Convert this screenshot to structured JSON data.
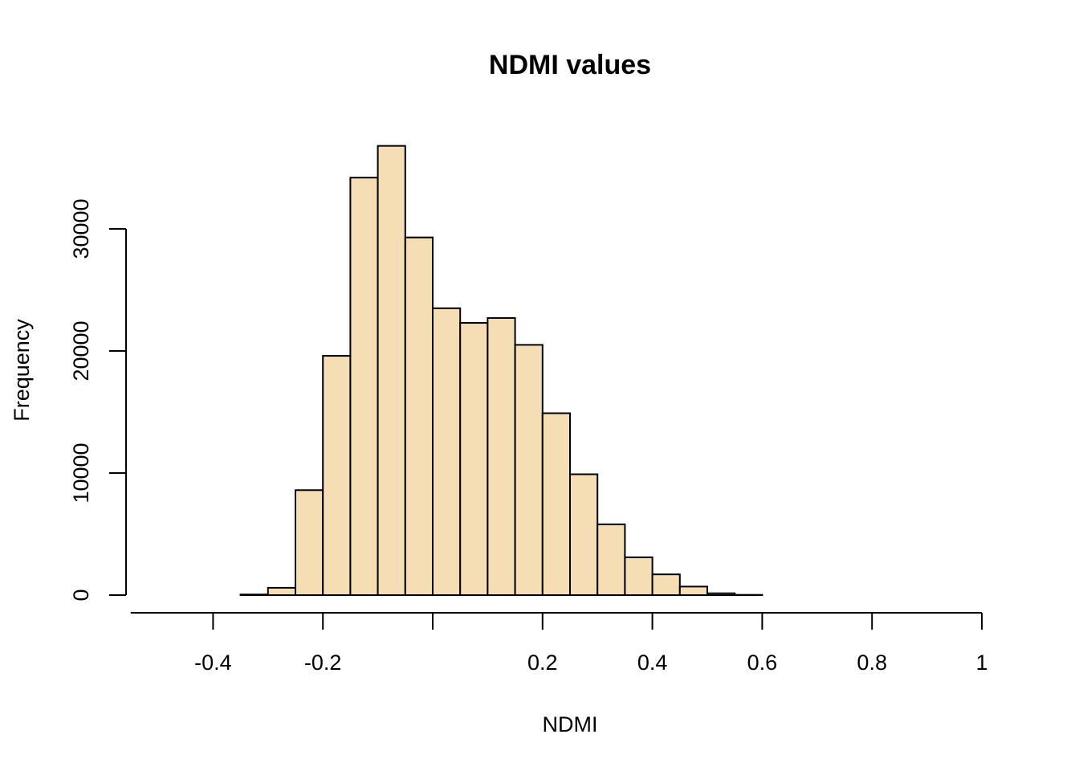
{
  "chart_data": {
    "type": "bar",
    "title": "NDMI values",
    "xlabel": "NDMI",
    "ylabel": "Frequency",
    "bar_color": "#f5deb3",
    "xlim": [
      -0.55,
      1.0
    ],
    "ylim": [
      0,
      38000
    ],
    "x_ticks": [
      -0.4,
      -0.2,
      0.0,
      0.2,
      0.4,
      0.6,
      0.8,
      1.0
    ],
    "x_tick_labels": [
      "-0.4",
      "-0.2",
      "",
      "0.2",
      "0.4",
      "0.6",
      "0.8",
      "1"
    ],
    "y_ticks": [
      0,
      10000,
      20000,
      30000
    ],
    "y_tick_labels": [
      "0",
      "10000",
      "20000",
      "30000"
    ],
    "bin_edges": [
      -0.55,
      -0.5,
      -0.45,
      -0.4,
      -0.35,
      -0.3,
      -0.25,
      -0.2,
      -0.15,
      -0.1,
      -0.05,
      0.0,
      0.05,
      0.1,
      0.15,
      0.2,
      0.25,
      0.3,
      0.35,
      0.4,
      0.45,
      0.5,
      0.55,
      0.6
    ],
    "values": [
      0,
      0,
      0,
      0,
      50,
      600,
      8600,
      19600,
      34200,
      36800,
      29300,
      23500,
      22300,
      22700,
      20500,
      14900,
      9900,
      5800,
      3100,
      1700,
      700,
      150,
      20
    ]
  }
}
